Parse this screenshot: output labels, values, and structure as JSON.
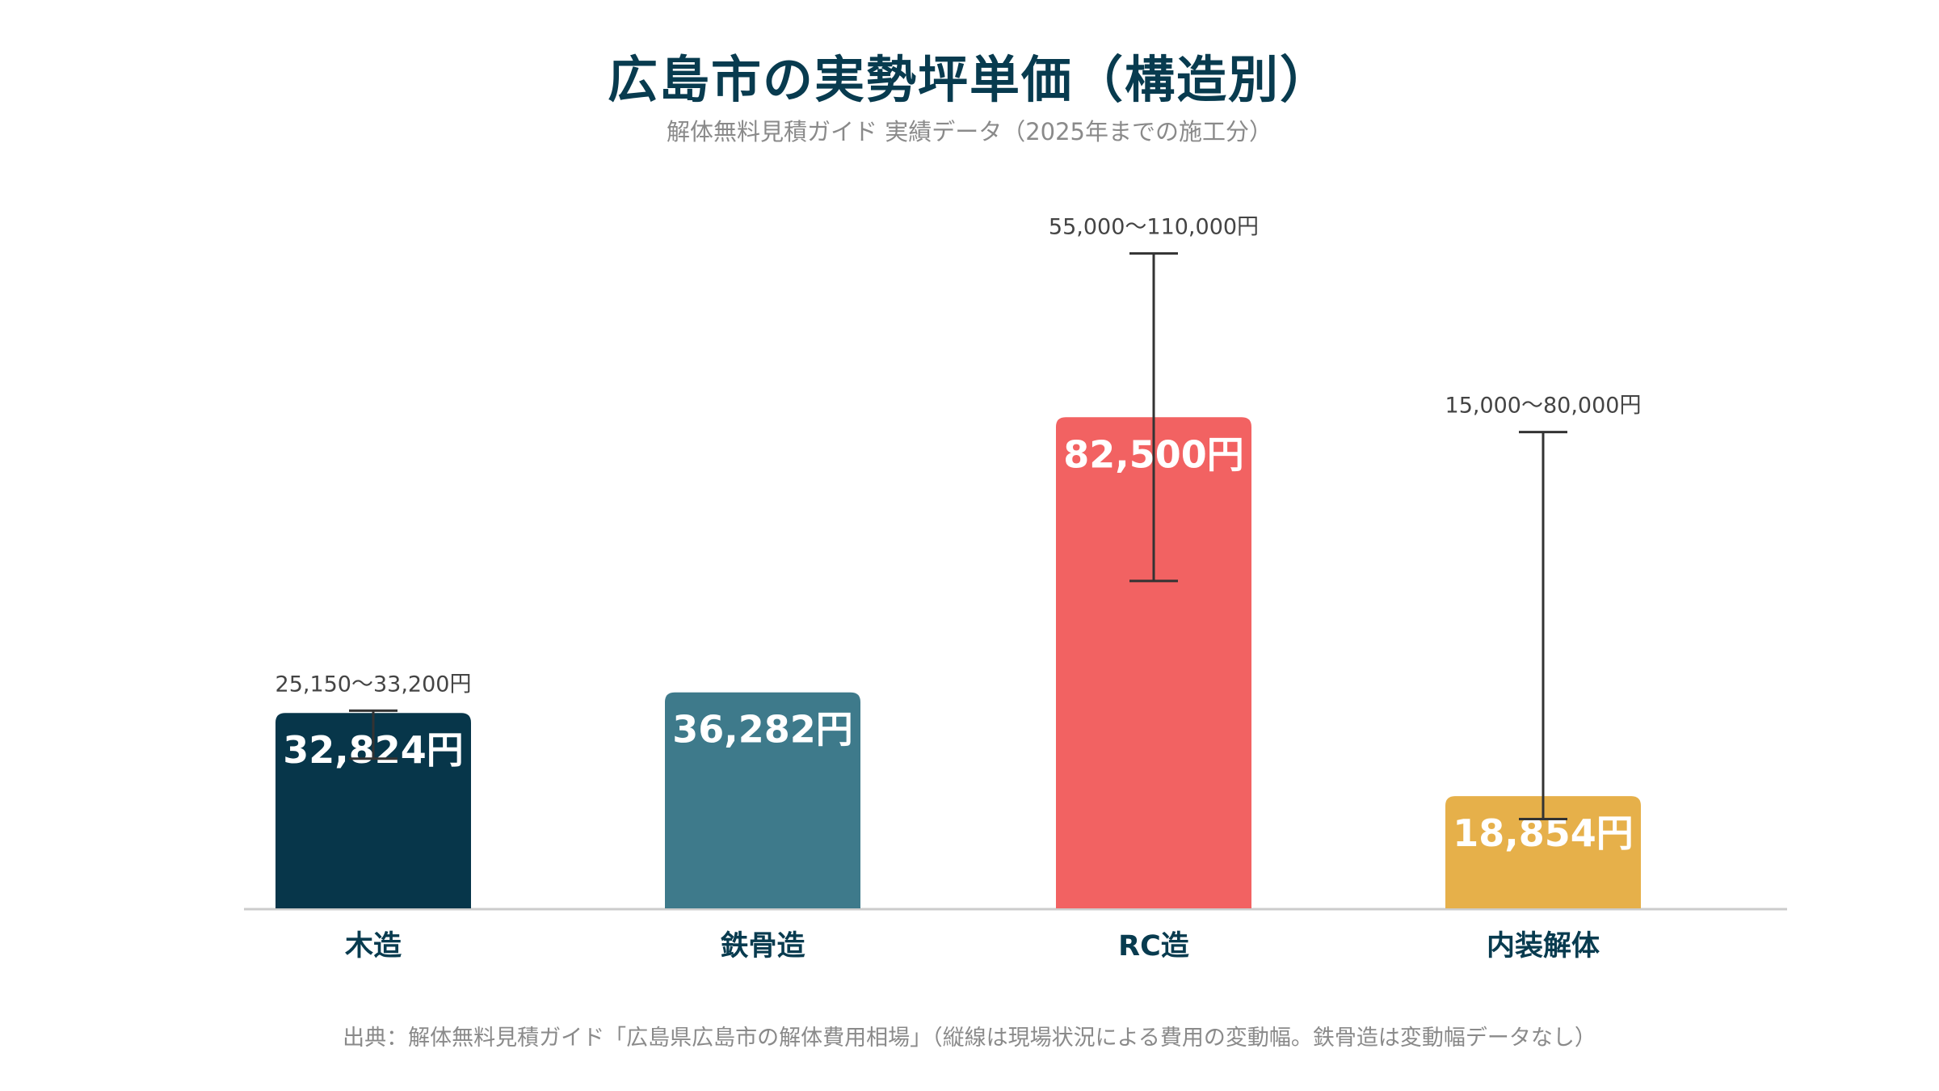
{
  "title": "広島市の実勢坪単価（構造別）",
  "subtitle": "解体無料見積ガイド 実績データ（2025年までの施工分）",
  "source": "出典：解体無料見積ガイド「広島県広島市の解体費用相場」（縦線は現場状況による費用の変動幅。鉄骨造は変動幅データなし）",
  "chart_data": {
    "type": "bar",
    "categories": [
      "木造",
      "鉄骨造",
      "RC造",
      "内装解体"
    ],
    "values": [
      32824,
      36282,
      82500,
      18854
    ],
    "value_labels": [
      "32,824円",
      "36,282円",
      "82,500円",
      "18,854円"
    ],
    "ranges": [
      [
        25150,
        33200
      ],
      null,
      [
        55000,
        110000
      ],
      [
        15000,
        80000
      ]
    ],
    "range_labels": [
      "25,150〜33,200円",
      "",
      "55,000〜110,000円",
      "15,000〜80,000円"
    ],
    "colors": [
      "#07364a",
      "#3e7a8b",
      "#f26262",
      "#e6b04a"
    ],
    "ylim": [
      0,
      120000
    ],
    "grid": false,
    "legend": "none"
  }
}
